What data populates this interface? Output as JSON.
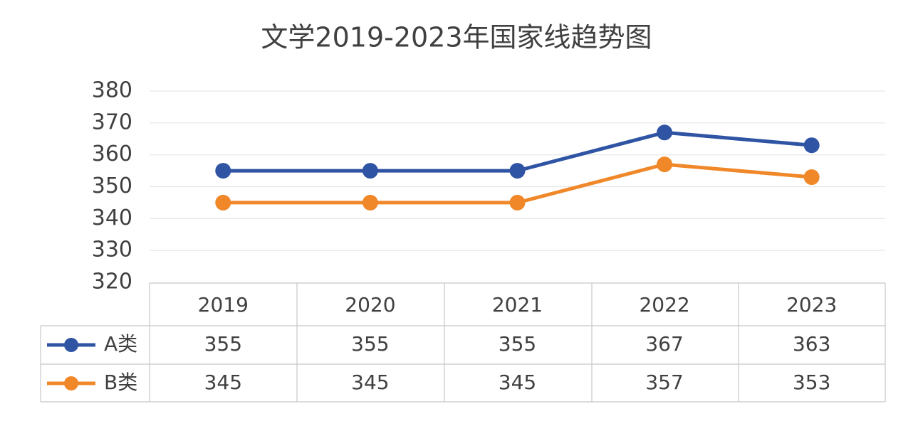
{
  "chart_data": {
    "type": "line",
    "title": "文学2019-2023年国家线趋势图",
    "categories": [
      "2019",
      "2020",
      "2021",
      "2022",
      "2023"
    ],
    "series": [
      {
        "name": "A类",
        "color": "#2f54a3",
        "values": [
          355,
          355,
          355,
          367,
          363
        ]
      },
      {
        "name": "B类",
        "color": "#f0882a",
        "values": [
          345,
          345,
          345,
          357,
          353
        ]
      }
    ],
    "ylim": [
      320,
      380
    ],
    "yticks": [
      320,
      330,
      340,
      350,
      360,
      370,
      380
    ],
    "grid": true
  }
}
